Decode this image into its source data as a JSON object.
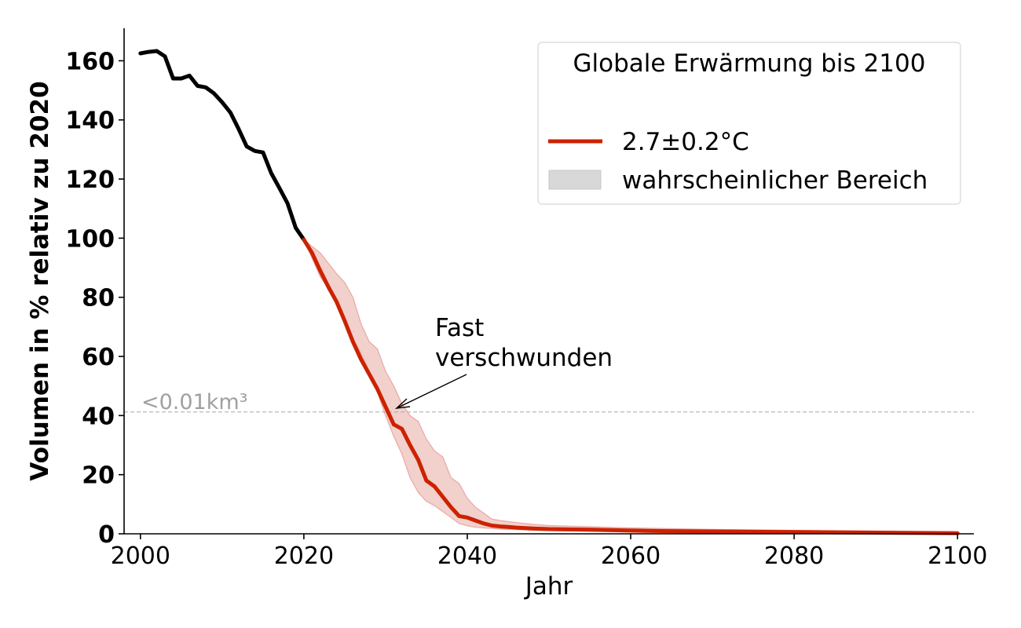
{
  "chart_data": {
    "type": "line",
    "xlabel": "Jahr",
    "ylabel": "Volumen in % relativ zu 2020",
    "xlim": [
      1998,
      2102
    ],
    "ylim": [
      0,
      171
    ],
    "x_ticks": [
      2000,
      2020,
      2040,
      2060,
      2080,
      2100
    ],
    "y_ticks": [
      0,
      20,
      40,
      60,
      80,
      100,
      120,
      140,
      160
    ],
    "grid": false,
    "legend": {
      "title": "Globale Erwärmung bis 2100",
      "placement": "top-right",
      "entries": [
        "2.7±0.2°C",
        "wahrscheinlicher Bereich"
      ]
    },
    "reference_line": {
      "y": 41.2,
      "label": "<0.01km³",
      "color": "#b0b0b0"
    },
    "annotation": {
      "text": [
        "Fast",
        "verschwunden"
      ],
      "x": 2036,
      "y": 57,
      "arrow_to": [
        2031,
        41.2
      ]
    },
    "series": [
      {
        "name": "",
        "color": "#000000",
        "x": [
          2000,
          2001,
          2002,
          2003,
          2004,
          2005,
          2006,
          2007,
          2008,
          2009,
          2010,
          2011,
          2012,
          2013,
          2014,
          2015,
          2016,
          2017,
          2018,
          2019,
          2020
        ],
        "y": [
          162.5,
          163,
          163.3,
          161.5,
          154,
          154,
          155,
          151.5,
          151,
          149,
          146,
          142.5,
          137,
          131,
          129.5,
          129,
          122,
          117,
          111.8,
          103.5,
          99.5
        ]
      },
      {
        "name": "2.7±0.2°C",
        "color": "#cc2200",
        "x": [
          2020,
          2021,
          2022,
          2023,
          2024,
          2025,
          2026,
          2027,
          2028,
          2029,
          2030,
          2031,
          2032,
          2033,
          2034,
          2035,
          2036,
          2037,
          2038,
          2039,
          2040,
          2041,
          2042,
          2043,
          2044,
          2045,
          2046,
          2048,
          2050,
          2055,
          2060,
          2062,
          2065,
          2070,
          2075,
          2080,
          2085,
          2090,
          2095,
          2100
        ],
        "y": [
          99.5,
          95,
          89,
          83.5,
          78.5,
          72,
          65,
          59,
          54,
          49,
          43,
          37,
          35.5,
          30,
          25,
          18,
          16,
          12.5,
          9,
          6,
          5.5,
          4.5,
          3.5,
          2.8,
          2.5,
          2.3,
          2.1,
          1.8,
          1.6,
          1.4,
          1.1,
          1.0,
          0.9,
          0.8,
          0.7,
          0.6,
          0.5,
          0.4,
          0.3,
          0.2
        ]
      }
    ],
    "band": {
      "name": "wahrscheinlicher Bereich",
      "color": "#e8a9a3",
      "x": [
        2020,
        2022,
        2024,
        2025,
        2026,
        2027,
        2028,
        2029,
        2030,
        2031,
        2032,
        2033,
        2034,
        2035,
        2036,
        2037,
        2038,
        2039,
        2040,
        2041,
        2042,
        2043,
        2044,
        2046,
        2048,
        2050,
        2055,
        2060,
        2070,
        2100
      ],
      "lower": [
        99.5,
        87,
        79,
        73,
        66,
        61,
        55,
        48,
        40,
        33,
        27,
        19,
        14,
        11,
        9.5,
        7.5,
        5.5,
        3.5,
        2.7,
        2.2,
        2.0,
        1.8,
        1.6,
        1.4,
        1.2,
        1.1,
        0.9,
        0.7,
        0.5,
        0.1
      ],
      "upper": [
        99.5,
        95,
        88,
        85,
        80,
        71,
        65,
        62.5,
        55,
        50,
        44,
        40,
        38,
        32,
        28,
        26,
        19,
        17,
        12,
        9,
        7,
        5,
        4.5,
        3.8,
        3.2,
        2.8,
        2.4,
        2.0,
        1.5,
        0.6
      ]
    }
  }
}
